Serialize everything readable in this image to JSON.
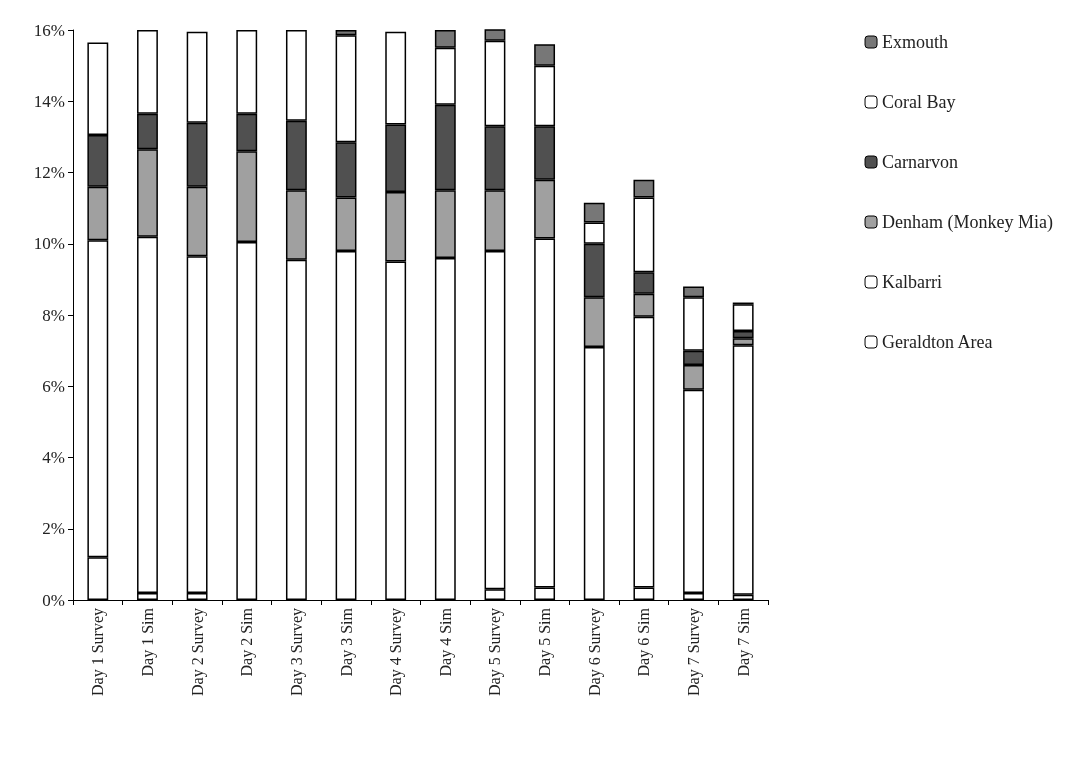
{
  "chart_data": {
    "type": "bar",
    "stacked": true,
    "categories": [
      "Day 1 Survey",
      "Day 1 Sim",
      "Day 2 Survey",
      "Day 2 Sim",
      "Day 3 Survey",
      "Day 3 Sim",
      "Day 4 Survey",
      "Day 4 Sim",
      "Day 5 Survey",
      "Day 5 Sim",
      "Day 6 Survey",
      "Day 6 Sim",
      "Day 7 Survey",
      "Day 7 Sim"
    ],
    "series": [
      {
        "name": "Geraldton Area",
        "color": "#ffffff",
        "values": [
          1.2,
          0.2,
          0.2,
          null,
          null,
          null,
          null,
          null,
          0.3,
          0.35,
          null,
          0.35,
          0.2,
          0.15
        ]
      },
      {
        "name": "Kalbarri",
        "color": "#ffffff",
        "values": [
          8.9,
          10.0,
          9.45,
          10.05,
          9.55,
          9.8,
          9.5,
          9.6,
          9.5,
          9.8,
          7.1,
          7.6,
          5.7,
          7.0
        ]
      },
      {
        "name": "Denham (Monkey Mia)",
        "color": "#a0a0a0",
        "values": [
          1.5,
          2.45,
          1.95,
          2.55,
          1.95,
          1.5,
          1.95,
          1.9,
          1.7,
          1.65,
          1.4,
          0.65,
          0.7,
          0.2
        ]
      },
      {
        "name": "Carnarvon",
        "color": "#505050",
        "values": [
          1.45,
          1.0,
          1.8,
          1.05,
          1.95,
          1.55,
          1.9,
          2.4,
          1.8,
          1.5,
          1.5,
          0.6,
          0.4,
          0.2
        ]
      },
      {
        "name": "Coral Bay",
        "color": "#ffffff",
        "values": [
          2.6,
          2.35,
          2.55,
          2.35,
          2.55,
          3.0,
          2.6,
          1.6,
          2.4,
          1.7,
          0.6,
          2.1,
          1.5,
          0.75
        ]
      },
      {
        "name": "Exmouth",
        "color": "#777777",
        "values": [
          null,
          null,
          null,
          null,
          null,
          0.15,
          null,
          0.5,
          0.35,
          0.6,
          0.55,
          0.5,
          0.3,
          0.05
        ]
      }
    ],
    "ylim": [
      0,
      16
    ],
    "yticks": [
      {
        "value": 0,
        "label": "0%"
      },
      {
        "value": 2,
        "label": "2%"
      },
      {
        "value": 4,
        "label": "4%"
      },
      {
        "value": 6,
        "label": "6%"
      },
      {
        "value": 8,
        "label": "8%"
      },
      {
        "value": 10,
        "label": "10%"
      },
      {
        "value": 12,
        "label": "12%"
      },
      {
        "value": 14,
        "label": "14%"
      },
      {
        "value": 16,
        "label": "16%"
      }
    ],
    "grid": false,
    "legend": "right"
  }
}
